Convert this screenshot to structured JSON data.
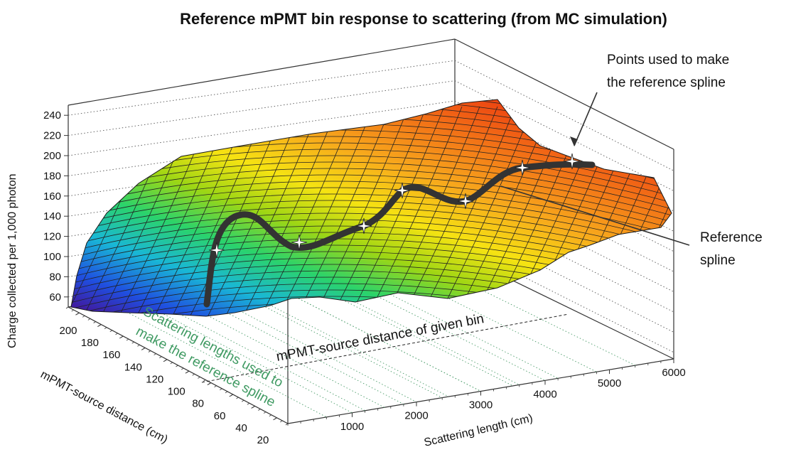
{
  "chart_data": {
    "type": "surface",
    "title": "Reference mPMT bin response to scattering (from MC simulation)",
    "zlabel": "Charge collected per 1,000 photon",
    "ylabel": "mPMT-source distance (cm)",
    "xlabel": "Scattering length (cm)",
    "z_ticks": [
      "60",
      "80",
      "100",
      "120",
      "140",
      "160",
      "180",
      "200",
      "220",
      "240"
    ],
    "y_ticks": [
      "200",
      "180",
      "160",
      "140",
      "120",
      "100",
      "80",
      "60",
      "40",
      "20"
    ],
    "x_ticks": [
      "1000",
      "2000",
      "3000",
      "4000",
      "5000",
      "6000"
    ],
    "zlim": [
      50,
      250
    ],
    "ylim": [
      10,
      200
    ],
    "xlim": [
      0,
      6000
    ],
    "colormap": [
      "#4b0a8c",
      "#1f4fe0",
      "#19b7d6",
      "#2bd36b",
      "#9ed614",
      "#f6e312",
      "#f7a81c",
      "#f05a14",
      "#e00808"
    ],
    "reference_spline": {
      "label_line1": "Reference",
      "label_line2": "spline",
      "color": "#333333",
      "ypos": "mPMT-source distance of given bin",
      "points": [
        {
          "x": 1000,
          "z": 115
        },
        {
          "x": 1500,
          "z": 118
        },
        {
          "x": 2000,
          "z": 131
        },
        {
          "x": 2500,
          "z": 163
        },
        {
          "x": 3000,
          "z": 155
        },
        {
          "x": 3500,
          "z": 185
        },
        {
          "x": 4000,
          "z": 190
        }
      ]
    },
    "annotations": {
      "points_line1": "Points used to make",
      "points_line2": "the reference spline",
      "scatter_line1": "Scattering lengths used to",
      "scatter_line2": "make the reference spline",
      "bin_label": "mPMT-source distance of given bin"
    }
  }
}
